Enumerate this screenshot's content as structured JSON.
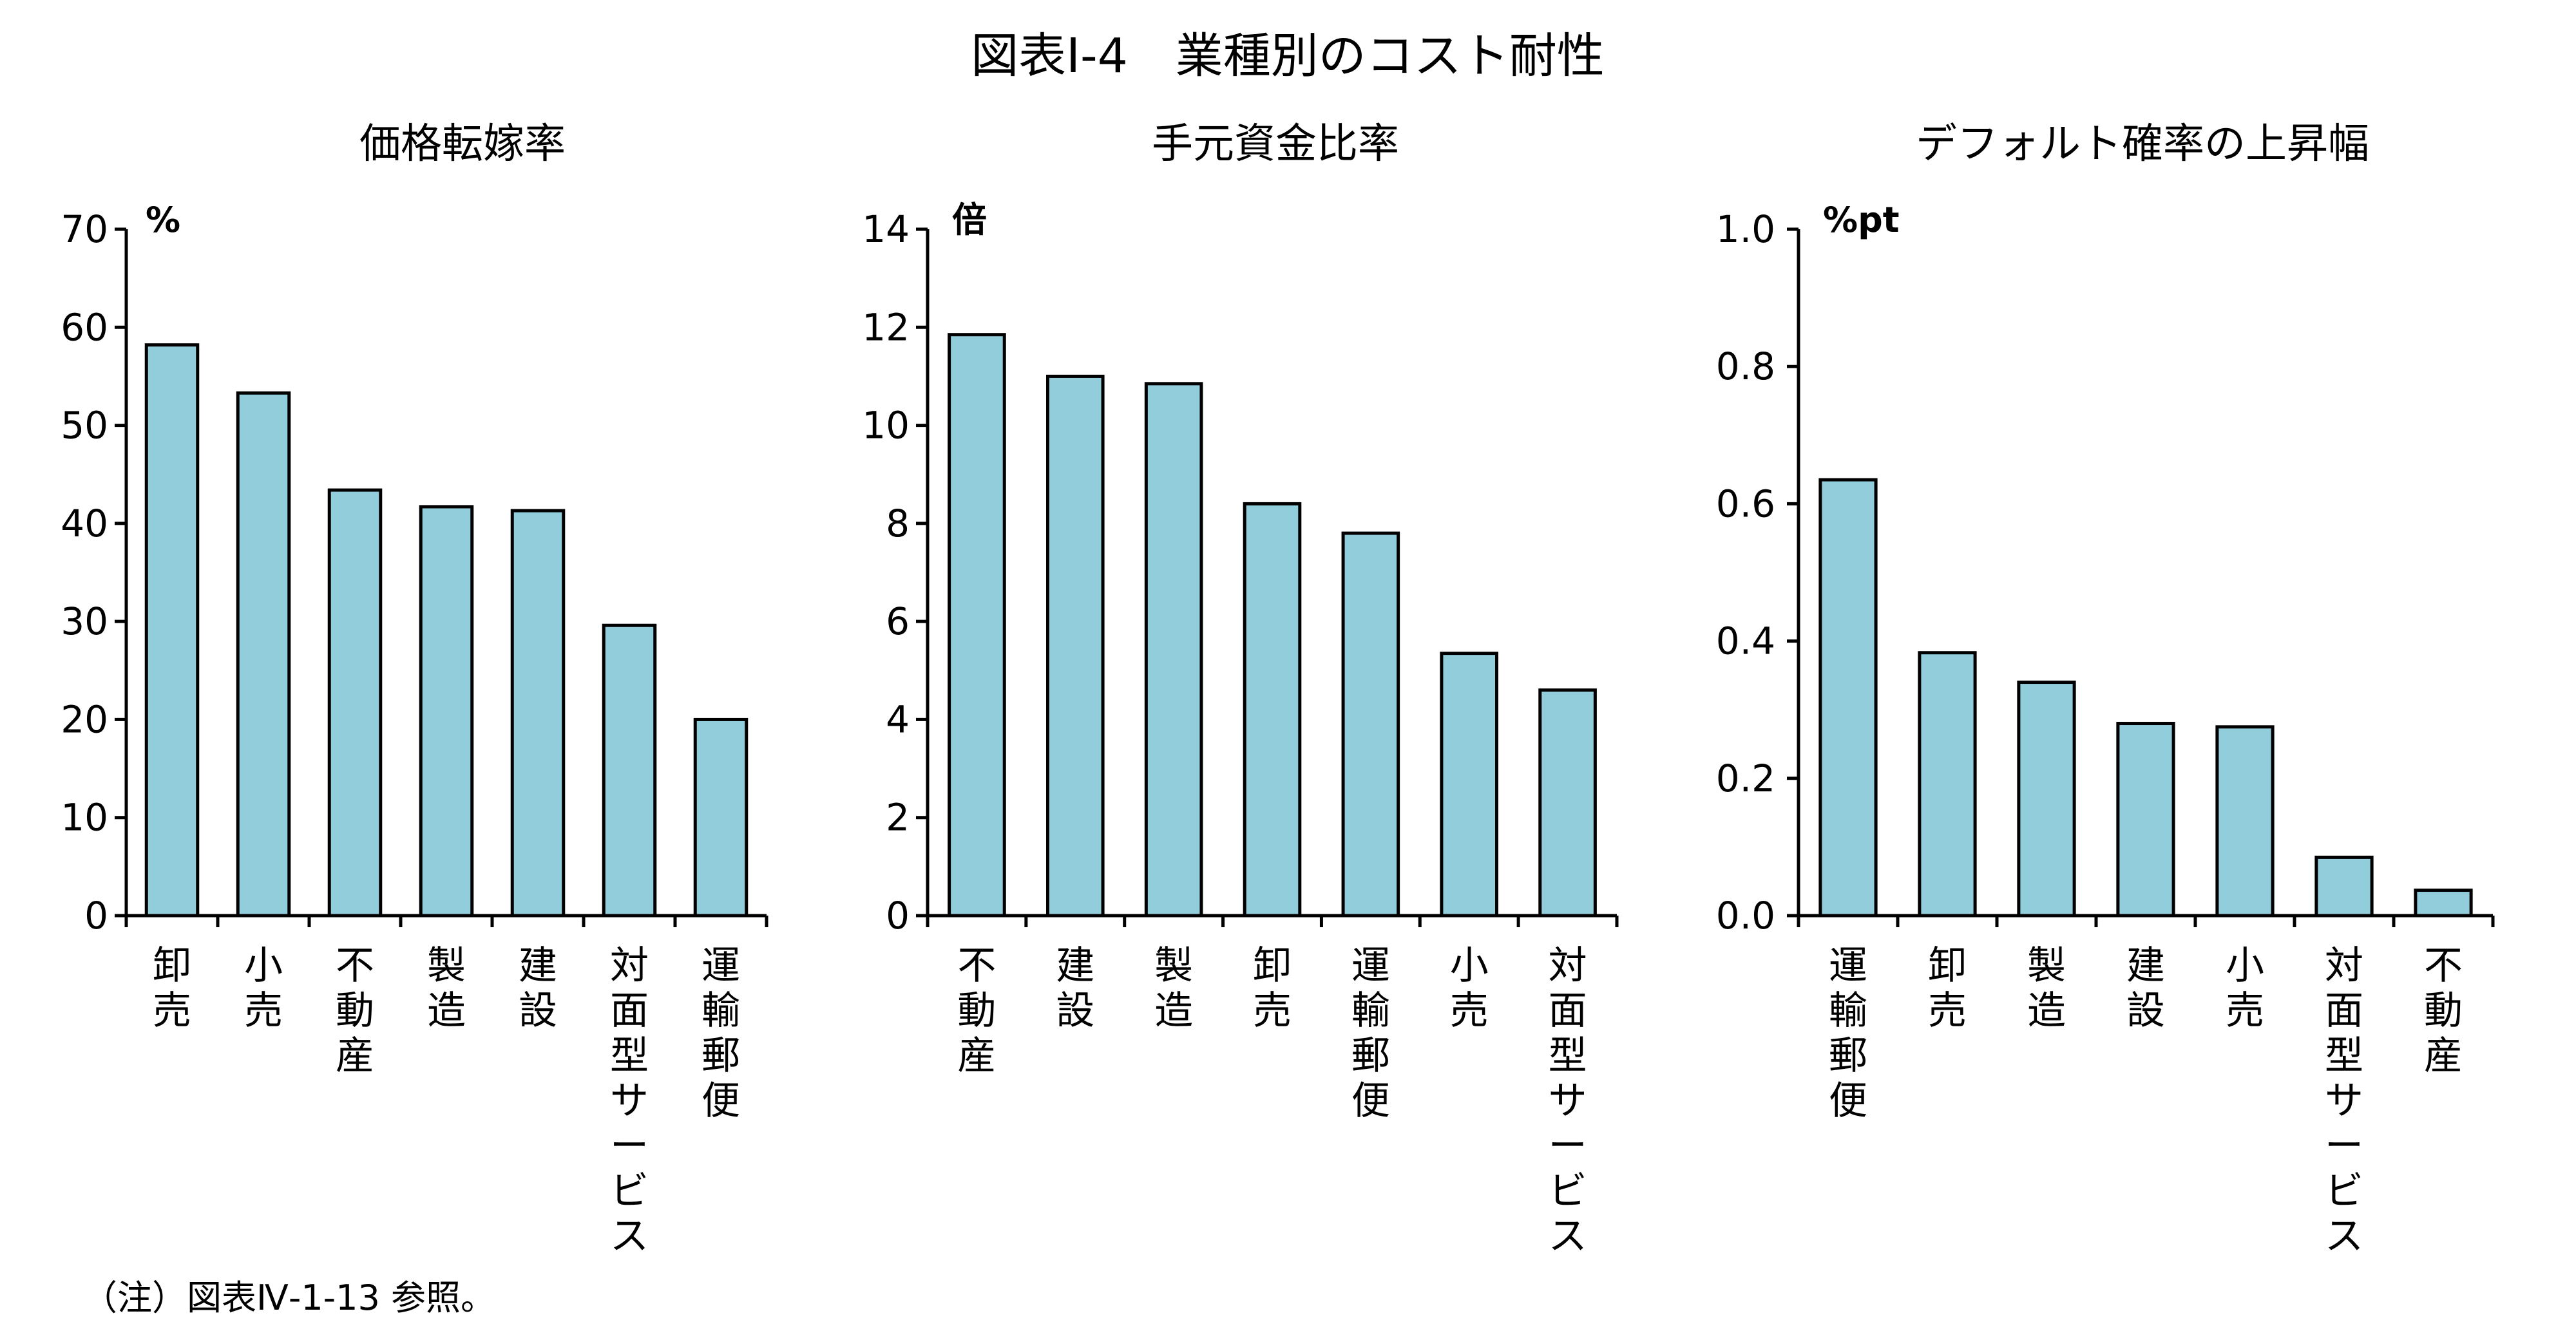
{
  "title": "図表Ⅰ-4　業種別のコスト耐性",
  "note": "（注）図表Ⅳ-1-13 参照。",
  "chart_data": [
    {
      "type": "bar",
      "title": "価格転嫁率",
      "unit": "%",
      "categories": [
        "卸売",
        "小売",
        "不動産",
        "製造",
        "建設",
        "対面型サービス",
        "運輸郵便"
      ],
      "values": [
        58.2,
        53.3,
        43.4,
        41.7,
        41.3,
        29.6,
        20.0
      ],
      "ylim": [
        0,
        70
      ],
      "yticks": [
        0,
        10,
        20,
        30,
        40,
        50,
        60,
        70
      ],
      "ytick_labels": [
        "0",
        "10",
        "20",
        "30",
        "40",
        "50",
        "60",
        "70"
      ],
      "bar_color": "#92cddc",
      "grid": false
    },
    {
      "type": "bar",
      "title": "手元資金比率",
      "unit": "倍",
      "categories": [
        "不動産",
        "建設",
        "製造",
        "卸売",
        "運輸郵便",
        "小売",
        "対面型サービス"
      ],
      "values": [
        11.85,
        11.0,
        10.85,
        8.4,
        7.8,
        5.35,
        4.6
      ],
      "ylim": [
        0,
        14
      ],
      "yticks": [
        0,
        2,
        4,
        6,
        8,
        10,
        12,
        14
      ],
      "ytick_labels": [
        "0",
        "2",
        "4",
        "6",
        "8",
        "10",
        "12",
        "14"
      ],
      "bar_color": "#92cddc",
      "grid": false
    },
    {
      "type": "bar",
      "title": "デフォルト確率の上昇幅",
      "unit": "%pt",
      "categories": [
        "運輸郵便",
        "卸売",
        "製造",
        "建設",
        "小売",
        "対面型サービス",
        "不動産"
      ],
      "values": [
        0.635,
        0.383,
        0.34,
        0.28,
        0.275,
        0.085,
        0.037
      ],
      "ylim": [
        0,
        1.0
      ],
      "yticks": [
        0,
        0.2,
        0.4,
        0.6,
        0.8,
        1.0
      ],
      "ytick_labels": [
        "0.0",
        "0.2",
        "0.4",
        "0.6",
        "0.8",
        "1.0"
      ],
      "bar_color": "#92cddc",
      "grid": false
    }
  ]
}
